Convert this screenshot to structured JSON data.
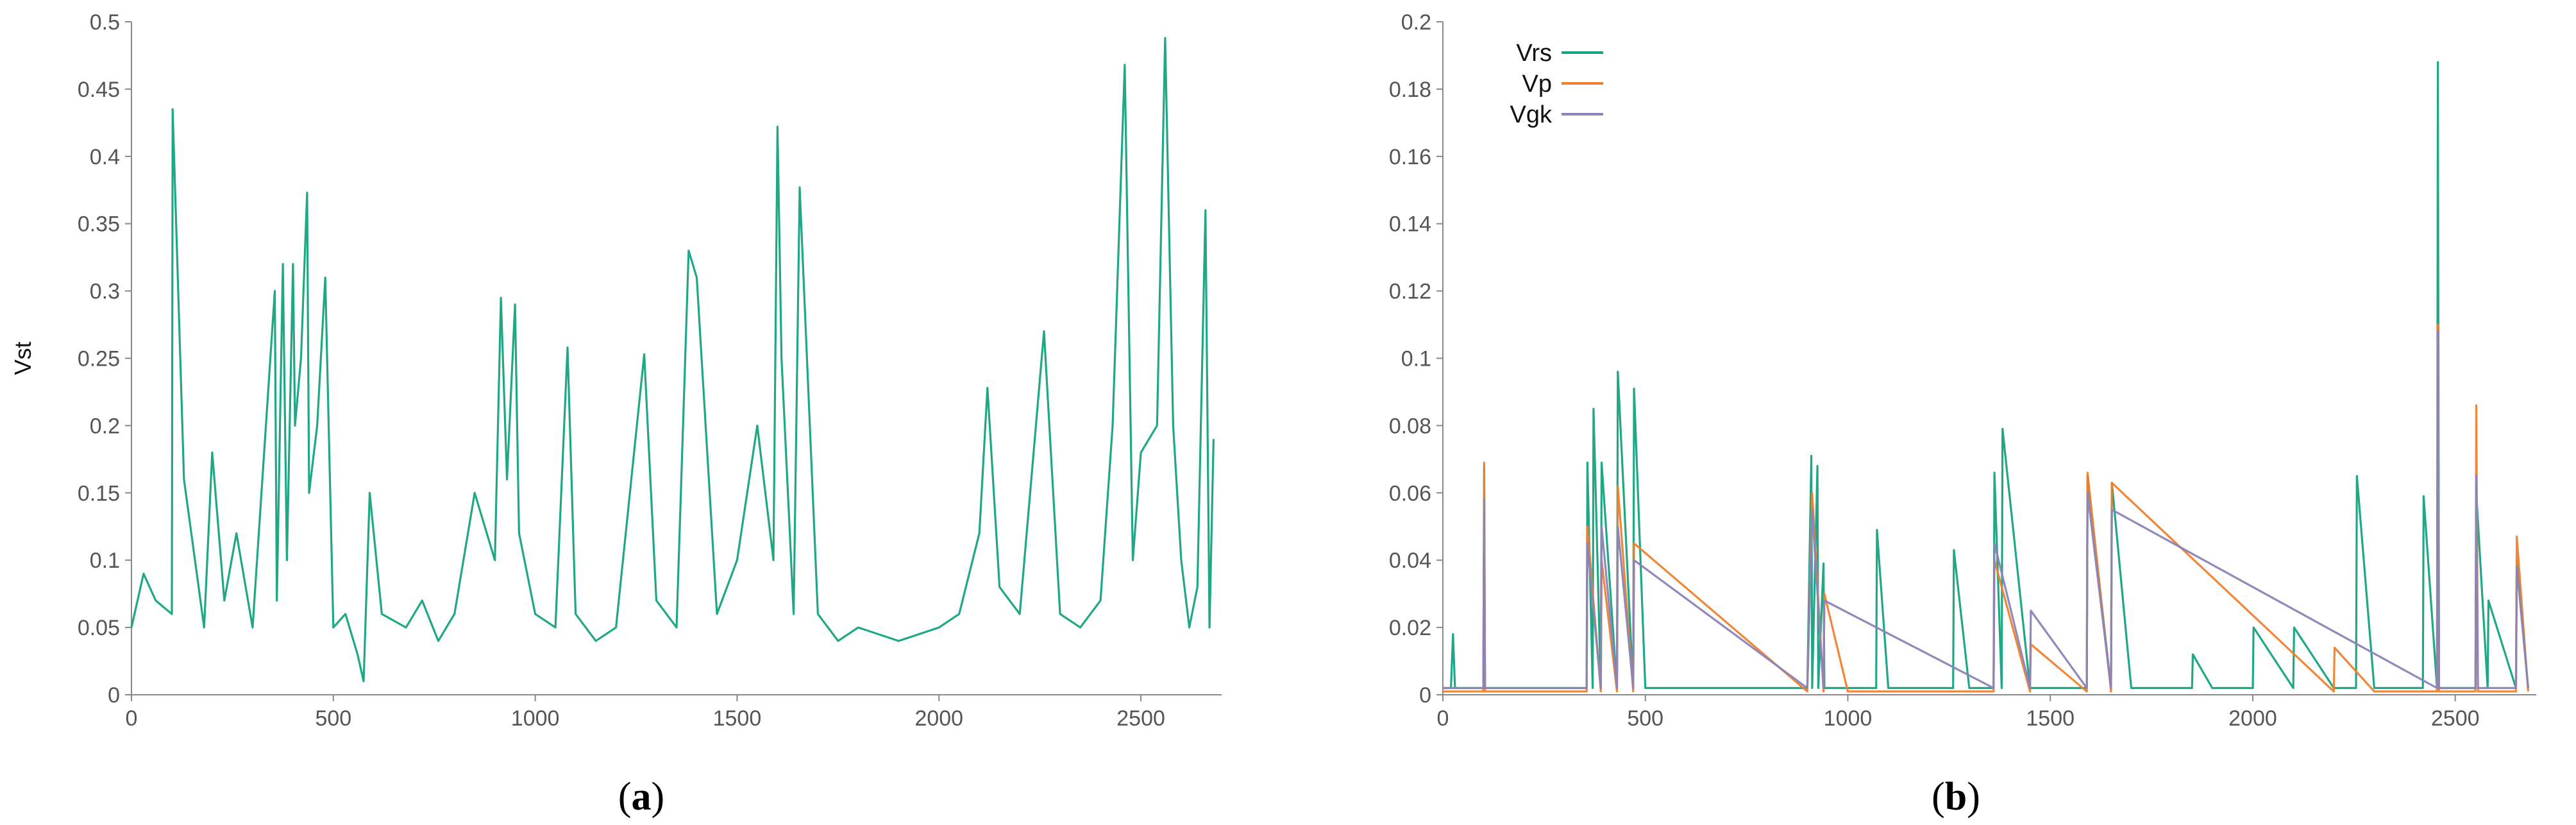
{
  "figure": {
    "panels": [
      {
        "label_open": "(",
        "label_letter": "a",
        "label_close": ")"
      },
      {
        "label_open": "(",
        "label_letter": "b",
        "label_close": ")"
      }
    ]
  },
  "chart_data": [
    {
      "id": "a",
      "type": "line",
      "title": "",
      "xlabel": "",
      "ylabel": "Vst",
      "xlim": [
        0,
        2700
      ],
      "ylim": [
        0,
        0.5
      ],
      "xticks": [
        0,
        500,
        1000,
        1500,
        2000,
        2500
      ],
      "yticks": [
        0,
        0.05,
        0.1,
        0.15,
        0.2,
        0.25,
        0.3,
        0.35,
        0.4,
        0.45,
        0.5
      ],
      "grid": false,
      "legend": null,
      "colors": {
        "Vst": "#14a37f"
      },
      "series": [
        {
          "x": [
            0,
            30,
            60,
            100,
            102,
            130,
            180,
            200,
            230,
            260,
            300,
            355,
            360,
            375,
            385,
            400,
            405,
            420,
            435,
            440,
            460,
            480,
            500,
            530,
            560,
            575,
            590,
            620,
            680,
            720,
            760,
            800,
            850,
            900,
            915,
            930,
            950,
            960,
            1000,
            1050,
            1080,
            1100,
            1150,
            1200,
            1270,
            1300,
            1350,
            1380,
            1400,
            1450,
            1500,
            1550,
            1590,
            1600,
            1610,
            1640,
            1655,
            1700,
            1750,
            1800,
            1900,
            2000,
            2050,
            2100,
            2120,
            2150,
            2200,
            2260,
            2300,
            2350,
            2400,
            2430,
            2460,
            2480,
            2500,
            2540,
            2560,
            2580,
            2600,
            2620,
            2640,
            2660,
            2670,
            2680
          ],
          "y": [
            0.05,
            0.09,
            0.07,
            0.06,
            0.435,
            0.16,
            0.05,
            0.18,
            0.07,
            0.12,
            0.05,
            0.3,
            0.07,
            0.32,
            0.1,
            0.32,
            0.2,
            0.25,
            0.373,
            0.15,
            0.2,
            0.31,
            0.05,
            0.06,
            0.03,
            0.01,
            0.15,
            0.06,
            0.05,
            0.07,
            0.04,
            0.06,
            0.15,
            0.1,
            0.295,
            0.16,
            0.29,
            0.12,
            0.06,
            0.05,
            0.258,
            0.06,
            0.04,
            0.05,
            0.253,
            0.07,
            0.05,
            0.33,
            0.31,
            0.06,
            0.1,
            0.2,
            0.1,
            0.422,
            0.25,
            0.06,
            0.377,
            0.06,
            0.04,
            0.05,
            0.04,
            0.05,
            0.06,
            0.12,
            0.228,
            0.08,
            0.06,
            0.27,
            0.06,
            0.05,
            0.07,
            0.2,
            0.468,
            0.1,
            0.18,
            0.2,
            0.488,
            0.2,
            0.1,
            0.05,
            0.08,
            0.36,
            0.05,
            0.19
          ]
        }
      ]
    },
    {
      "id": "b",
      "type": "line",
      "title": "",
      "xlabel": "",
      "ylabel": "",
      "xlim": [
        0,
        2700
      ],
      "ylim": [
        0,
        0.2
      ],
      "xticks": [
        0,
        500,
        1000,
        1500,
        2000,
        2500
      ],
      "yticks": [
        0,
        0.02,
        0.04,
        0.06,
        0.08,
        0.1,
        0.12,
        0.14,
        0.16,
        0.18,
        0.2
      ],
      "grid": false,
      "legend_position": "top-left",
      "colors": {
        "Vrs": "#14a37f",
        "Vp": "#f07f2d",
        "Vgk": "#8b83b8"
      },
      "series": [
        {
          "name": "Vrs",
          "x": [
            0,
            20,
            25,
            30,
            100,
            102,
            104,
            200,
            355,
            357,
            370,
            372,
            390,
            392,
            430,
            432,
            470,
            472,
            500,
            600,
            700,
            800,
            900,
            910,
            912,
            925,
            927,
            940,
            942,
            1000,
            1070,
            1072,
            1100,
            1200,
            1260,
            1262,
            1300,
            1360,
            1362,
            1380,
            1382,
            1450,
            1500,
            1550,
            1590,
            1592,
            1650,
            1652,
            1700,
            1850,
            1852,
            1900,
            2000,
            2002,
            2100,
            2102,
            2200,
            2255,
            2257,
            2300,
            2420,
            2422,
            2455,
            2457,
            2460,
            2500,
            2550,
            2552,
            2580,
            2582,
            2650,
            2652,
            2680
          ],
          "y": [
            0.002,
            0.002,
            0.018,
            0.002,
            0.002,
            0.068,
            0.002,
            0.002,
            0.002,
            0.069,
            0.002,
            0.085,
            0.002,
            0.069,
            0.002,
            0.096,
            0.002,
            0.091,
            0.002,
            0.002,
            0.002,
            0.002,
            0.002,
            0.071,
            0.002,
            0.068,
            0.002,
            0.039,
            0.002,
            0.002,
            0.002,
            0.049,
            0.002,
            0.002,
            0.002,
            0.043,
            0.002,
            0.002,
            0.066,
            0.002,
            0.079,
            0.002,
            0.002,
            0.002,
            0.002,
            0.065,
            0.002,
            0.063,
            0.002,
            0.002,
            0.012,
            0.002,
            0.002,
            0.02,
            0.002,
            0.02,
            0.002,
            0.002,
            0.065,
            0.002,
            0.002,
            0.059,
            0.002,
            0.188,
            0.002,
            0.002,
            0.002,
            0.06,
            0.002,
            0.028,
            0.002,
            0.04,
            0.002
          ]
        },
        {
          "name": "Vp",
          "x": [
            0,
            100,
            102,
            104,
            200,
            355,
            357,
            390,
            392,
            430,
            432,
            470,
            472,
            900,
            912,
            940,
            942,
            1000,
            1360,
            1362,
            1450,
            1452,
            1590,
            1592,
            1650,
            1652,
            2200,
            2202,
            2300,
            2455,
            2457,
            2460,
            2550,
            2552,
            2556,
            2650,
            2652,
            2680
          ],
          "y": [
            0.001,
            0.001,
            0.069,
            0.001,
            0.001,
            0.001,
            0.05,
            0.001,
            0.04,
            0.001,
            0.062,
            0.001,
            0.045,
            0.001,
            0.06,
            0.001,
            0.03,
            0.001,
            0.001,
            0.04,
            0.001,
            0.015,
            0.001,
            0.066,
            0.001,
            0.063,
            0.001,
            0.014,
            0.001,
            0.001,
            0.11,
            0.001,
            0.001,
            0.086,
            0.001,
            0.001,
            0.047,
            0.001
          ]
        },
        {
          "name": "Vgk",
          "x": [
            0,
            100,
            102,
            104,
            355,
            357,
            390,
            392,
            430,
            432,
            470,
            472,
            900,
            912,
            940,
            942,
            1360,
            1362,
            1450,
            1452,
            1590,
            1592,
            1650,
            1652,
            2455,
            2457,
            2460,
            2550,
            2552,
            2556,
            2650,
            2652,
            2680
          ],
          "y": [
            0.002,
            0.002,
            0.058,
            0.002,
            0.002,
            0.045,
            0.002,
            0.05,
            0.002,
            0.05,
            0.002,
            0.04,
            0.002,
            0.055,
            0.002,
            0.028,
            0.002,
            0.045,
            0.002,
            0.025,
            0.002,
            0.06,
            0.002,
            0.055,
            0.002,
            0.108,
            0.002,
            0.002,
            0.065,
            0.002,
            0.002,
            0.038,
            0.002
          ]
        }
      ]
    }
  ]
}
